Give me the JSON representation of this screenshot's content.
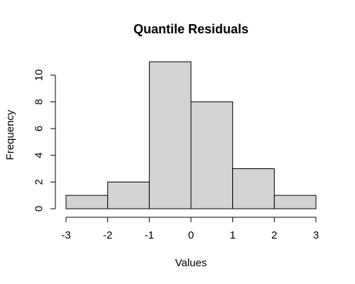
{
  "chart_data": {
    "type": "bar",
    "subtype": "histogram",
    "title": "Quantile Residuals",
    "xlabel": "Values",
    "ylabel": "Frequency",
    "bins": [
      {
        "from": -3,
        "to": -2,
        "count": 1
      },
      {
        "from": -2,
        "to": -1,
        "count": 2
      },
      {
        "from": -1,
        "to": 0,
        "count": 11
      },
      {
        "from": 0,
        "to": 1,
        "count": 8
      },
      {
        "from": 1,
        "to": 2,
        "count": 3
      },
      {
        "from": 2,
        "to": 3,
        "count": 1
      }
    ],
    "xlim": [
      -3,
      3
    ],
    "ylim": [
      0,
      11
    ],
    "x_ticks": [
      -3,
      -2,
      -1,
      0,
      1,
      2,
      3
    ],
    "y_ticks": [
      0,
      2,
      4,
      6,
      8,
      10
    ],
    "grid": false,
    "colors": {
      "bar_fill": "#d3d3d3",
      "bar_stroke": "#000000"
    }
  }
}
